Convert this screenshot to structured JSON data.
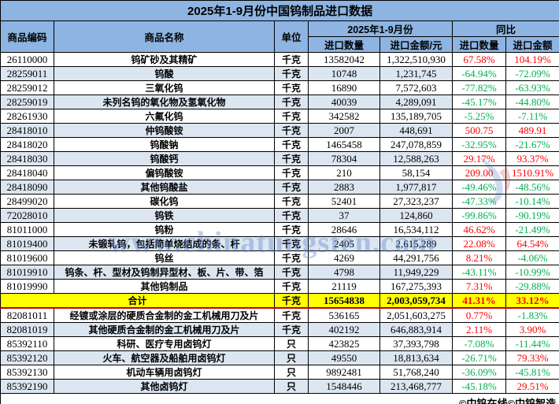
{
  "title": "2025年1-9月份中国钨制品进口数据",
  "colors": {
    "header_bg": "#8DB4E2",
    "band_bg": "#DCE6F1",
    "total_bg": "#FFFF00",
    "up_text": "#FF0000",
    "down_text": "#00B050",
    "total_divider": "#C00000"
  },
  "header": {
    "code": "商品编码",
    "name": "商品名称",
    "unit": "单位",
    "period_group": "2025年1-9月份",
    "yoy_group": "同比",
    "qty": "进口数量",
    "amount": "进口金额/元",
    "yoy_qty": "进口数量",
    "yoy_amount": "进口金额"
  },
  "rows": [
    {
      "code": "26110000",
      "name": "钨矿砂及其精矿",
      "unit": "千克",
      "qty": "13582042",
      "amount": "1,322,510,930",
      "yoy_qty": "67.58%",
      "yoy_amount": "104.19%",
      "shade": false
    },
    {
      "code": "28259011",
      "name": "钨酸",
      "unit": "千克",
      "qty": "10748",
      "amount": "1,231,745",
      "yoy_qty": "-64.94%",
      "yoy_amount": "-72.09%",
      "shade": true
    },
    {
      "code": "28259012",
      "name": "三氧化钨",
      "unit": "千克",
      "qty": "16890",
      "amount": "7,572,603",
      "yoy_qty": "-77.82%",
      "yoy_amount": "-63.93%",
      "shade": false
    },
    {
      "code": "28259019",
      "name": "未列名钨的氧化物及氢氧化物",
      "unit": "千克",
      "qty": "40039",
      "amount": "4,289,091",
      "yoy_qty": "-45.17%",
      "yoy_amount": "-44.80%",
      "shade": true
    },
    {
      "code": "28261930",
      "name": "六氟化钨",
      "unit": "千克",
      "qty": "342582",
      "amount": "135,189,705",
      "yoy_qty": "-5.25%",
      "yoy_amount": "-7.11%",
      "shade": false
    },
    {
      "code": "28418010",
      "name": "仲钨酸铵",
      "unit": "千克",
      "qty": "2007",
      "amount": "448,691",
      "yoy_qty": "500.75",
      "yoy_amount": "489.91",
      "shade": true
    },
    {
      "code": "28418020",
      "name": "钨酸钠",
      "unit": "千克",
      "qty": "1465458",
      "amount": "247,078,859",
      "yoy_qty": "-32.95%",
      "yoy_amount": "-21.67%",
      "shade": false
    },
    {
      "code": "28418030",
      "name": "钨酸钙",
      "unit": "千克",
      "qty": "78304",
      "amount": "12,588,263",
      "yoy_qty": "29.17%",
      "yoy_amount": "93.37%",
      "shade": true
    },
    {
      "code": "28418040",
      "name": "偏钨酸铵",
      "unit": "千克",
      "qty": "210",
      "amount": "58,154",
      "yoy_qty": "209.00",
      "yoy_amount": "1510.91%",
      "shade": false
    },
    {
      "code": "28418090",
      "name": "其他钨酸盐",
      "unit": "千克",
      "qty": "2883",
      "amount": "1,977,817",
      "yoy_qty": "-49.46%",
      "yoy_amount": "-48.56%",
      "shade": true
    },
    {
      "code": "28499020",
      "name": "碳化钨",
      "unit": "千克",
      "qty": "52401",
      "amount": "27,323,237",
      "yoy_qty": "-47.33%",
      "yoy_amount": "-10.14%",
      "shade": false
    },
    {
      "code": "72028010",
      "name": "钨铁",
      "unit": "千克",
      "qty": "37",
      "amount": "124,860",
      "yoy_qty": "-99.86%",
      "yoy_amount": "-90.19%",
      "shade": true
    },
    {
      "code": "81011000",
      "name": "钨粉",
      "unit": "千克",
      "qty": "28646",
      "amount": "16,534,112",
      "yoy_qty": "46.62%",
      "yoy_amount": "-21.49%",
      "shade": false
    },
    {
      "code": "81019400",
      "name": "未锻轧钨，包括简单烧结成的条、杆",
      "unit": "千克",
      "qty": "2405",
      "amount": "2,615,289",
      "yoy_qty": "22.08%",
      "yoy_amount": "64.54%",
      "shade": true
    },
    {
      "code": "81019600",
      "name": "钨丝",
      "unit": "千克",
      "qty": "4269",
      "amount": "44,291,756",
      "yoy_qty": "8.21%",
      "yoy_amount": "-4.06%",
      "shade": false
    },
    {
      "code": "81019910",
      "name": "钨条、杆、型材及钨制异型材、板、片、带、箔",
      "unit": "千克",
      "qty": "4798",
      "amount": "11,949,229",
      "yoy_qty": "-43.11%",
      "yoy_amount": "-10.99%",
      "shade": true
    },
    {
      "code": "81019990",
      "name": "其他钨制品",
      "unit": "千克",
      "qty": "21119",
      "amount": "167,275,393",
      "yoy_qty": "7.31%",
      "yoy_amount": "-29.88%",
      "shade": false
    },
    {
      "total": true,
      "name": "合计",
      "unit": "千克",
      "qty": "15654838",
      "amount": "2,003,059,734",
      "yoy_qty": "41.31%",
      "yoy_amount": "33.12%",
      "shade": false
    },
    {
      "code": "82081011",
      "name": "经镀或涂层的硬质合金制的金工机械用刀及片",
      "unit": "千克",
      "qty": "536165",
      "amount": "2,051,603,275",
      "yoy_qty": "0.77%",
      "yoy_amount": "-1.83%",
      "shade": false
    },
    {
      "code": "82081019",
      "name": "其他硬质合金制的金工机械用刀及片",
      "unit": "千克",
      "qty": "402192",
      "amount": "646,883,914",
      "yoy_qty": "2.11%",
      "yoy_amount": "3.90%",
      "shade": true
    },
    {
      "code": "85392110",
      "name": "科研、医疗专用卤钨灯",
      "unit": "只",
      "qty": "423825",
      "amount": "37,393,798",
      "yoy_qty": "-7.08%",
      "yoy_amount": "-11.44%",
      "shade": false
    },
    {
      "code": "85392120",
      "name": "火车、航空器及船舶用卤钨灯",
      "unit": "只",
      "qty": "49550",
      "amount": "18,813,634",
      "yoy_qty": "-26.71%",
      "yoy_amount": "79.33%",
      "shade": true
    },
    {
      "code": "85392130",
      "name": "机动车辆用卤钨灯",
      "unit": "只",
      "qty": "9892481",
      "amount": "51,768,240",
      "yoy_qty": "-36.09%",
      "yoy_amount": "-45.81%",
      "shade": false
    },
    {
      "code": "85392190",
      "name": "其他卤钨灯",
      "unit": "只",
      "qty": "1548446",
      "amount": "213,468,777",
      "yoy_qty": "-45.18%",
      "yoy_amount": "29.51%",
      "shade": true
    }
  ],
  "footer": {
    "credit": "©中钨在线©中钨智造"
  },
  "watermark": {
    "text": "www.chinatungsten.com"
  }
}
